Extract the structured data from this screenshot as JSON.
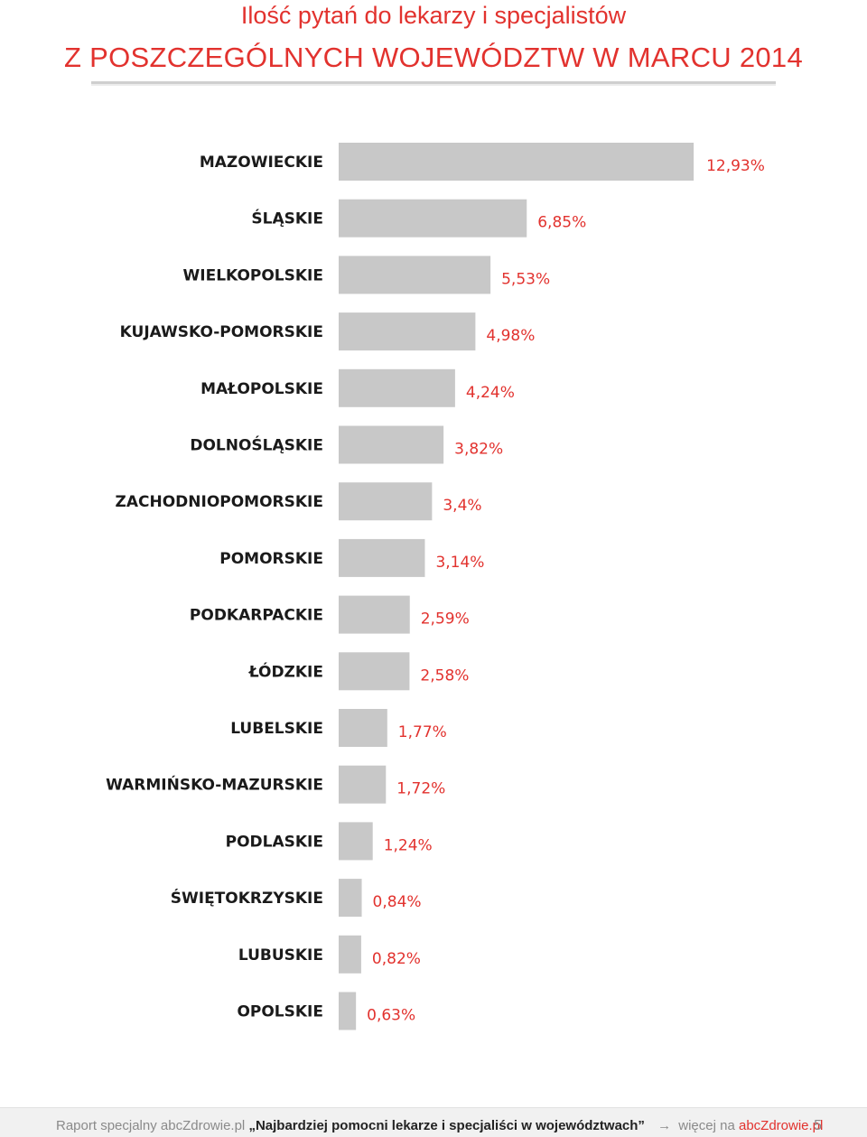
{
  "header": {
    "title_line1": "Ilość pytań do lekarzy i specjalistów",
    "title_line2": "Z POSZCZEGÓLNYCH WOJEWÓDZTW W MARCU 2014"
  },
  "chart_data": {
    "type": "bar",
    "orientation": "horizontal",
    "title": "Ilość pytań do lekarzy i specjalistów Z POSZCZEGÓLNYCH WOJEWÓDZTW W MARCU 2014",
    "categories": [
      "MAZOWIECKIE",
      "ŚLĄSKIE",
      "WIELKOPOLSKIE",
      "KUJAWSKO-POMORSKIE",
      "MAŁOPOLSKIE",
      "DOLNOŚLĄSKIE",
      "ZACHODNIOPOMORSKIE",
      "POMORSKIE",
      "PODKARPACKIE",
      "ŁÓDZKIE",
      "LUBELSKIE",
      "WARMIŃSKO-MAZURSKIE",
      "PODLASKIE",
      "ŚWIĘTOKRZYSKIE",
      "LUBUSKIE",
      "OPOLSKIE"
    ],
    "values": [
      12.93,
      6.85,
      5.53,
      4.98,
      4.24,
      3.82,
      3.4,
      3.14,
      2.59,
      2.58,
      1.77,
      1.72,
      1.24,
      0.84,
      0.82,
      0.63
    ],
    "value_labels": [
      "12,93%",
      "6,85%",
      "5,53%",
      "4,98%",
      "4,24%",
      "3,82%",
      "3,4%",
      "3,14%",
      "2,59%",
      "2,58%",
      "1,77%",
      "1,72%",
      "1,24%",
      "0,84%",
      "0,82%",
      "0,63%"
    ],
    "unit": "%",
    "bar_color": "#c8c8c8",
    "label_color": "#e2322e",
    "grid": false,
    "legend": "none"
  },
  "footer": {
    "prefix": "Raport specjalny abcZdrowie.pl",
    "report_title": "„Najbardziej pomocni lekarze i specjaliści w województwach”",
    "more_text": "więcej na",
    "site": "abcZdrowie.pl",
    "page_number": "5"
  },
  "colors": {
    "accent": "#e2322e",
    "bar": "#c8c8c8",
    "footer_bg": "#f1f1f1"
  }
}
